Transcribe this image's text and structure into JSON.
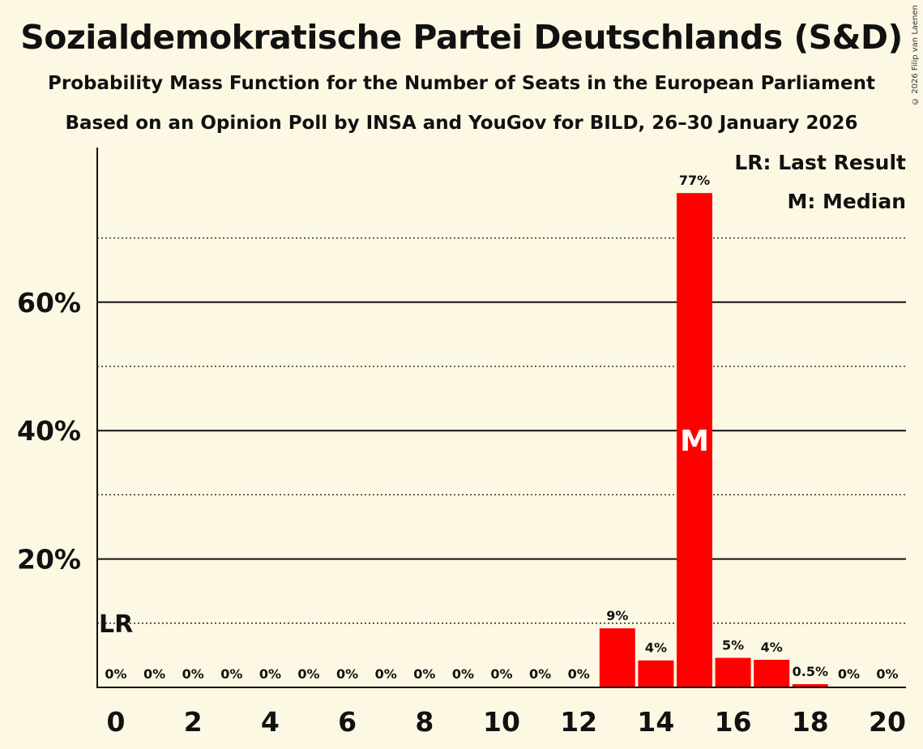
{
  "chart_data": {
    "type": "bar",
    "title": "Sozialdemokratische Partei Deutschlands (S&D)",
    "subtitle": "Probability Mass Function for the Number of Seats in the European Parliament",
    "subtitle2": "Based on an Opinion Poll by INSA and YouGov for BILD, 26–30 January 2026",
    "copyright": "© 2026 Filip van Laenen",
    "xlabel": "",
    "ylabel": "",
    "x": [
      0,
      1,
      2,
      3,
      4,
      5,
      6,
      7,
      8,
      9,
      10,
      11,
      12,
      13,
      14,
      15,
      16,
      17,
      18,
      19,
      20
    ],
    "values": [
      0,
      0,
      0,
      0,
      0,
      0,
      0,
      0,
      0,
      0,
      0,
      0,
      0,
      9.2,
      4.2,
      77,
      4.6,
      4.3,
      0.5,
      0,
      0
    ],
    "data_labels": [
      "0%",
      "0%",
      "0%",
      "0%",
      "0%",
      "0%",
      "0%",
      "0%",
      "0%",
      "0%",
      "0%",
      "0%",
      "0%",
      "9%",
      "4%",
      "77%",
      "5%",
      "4%",
      "0.5%",
      "0%",
      "0%"
    ],
    "x_tick_labels": [
      "0",
      "2",
      "4",
      "6",
      "8",
      "10",
      "12",
      "14",
      "16",
      "18",
      "20"
    ],
    "x_ticks": [
      0,
      2,
      4,
      6,
      8,
      10,
      12,
      14,
      16,
      18,
      20
    ],
    "y_ticks": [
      20,
      40,
      60
    ],
    "y_tick_labels": [
      "20%",
      "40%",
      "60%"
    ],
    "y_minor_ticks": [
      10,
      30,
      50,
      70
    ],
    "ylim": [
      0,
      84
    ],
    "bar_color": "#ff0000",
    "last_result_seat": 0,
    "last_result_value": 10,
    "last_result_label": "LR",
    "median_seat": 15,
    "median_label": "M",
    "legend": [
      "LR: Last Result",
      "M: Median"
    ]
  }
}
